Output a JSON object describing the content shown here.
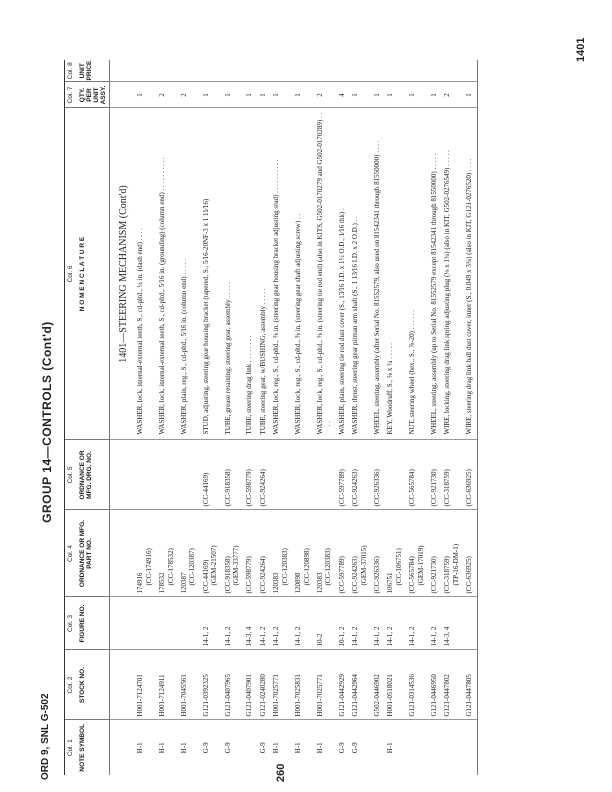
{
  "header": {
    "page_number": "1401",
    "document_id": "ORD 9, SNL G-502",
    "folio": "260",
    "group_title": "GROUP 14—CONTROLS (Cont'd)"
  },
  "columns": [
    {
      "col": "Col. 1",
      "label": "NOTE SYMBOL"
    },
    {
      "col": "Col. 2",
      "label": "STOCK NO."
    },
    {
      "col": "Col. 3",
      "label": "FIGURE NO."
    },
    {
      "col": "Col. 4",
      "label": "ORDNANCE OR MFG. PART NO."
    },
    {
      "col": "Col. 5",
      "label": "ORDNANCE OR MFG. DRG. NO."
    },
    {
      "col": "Col. 6",
      "label": "N O M E N C L A T U R E"
    },
    {
      "col": "Col. 7",
      "label": "QTY. PER UNIT ASSY."
    },
    {
      "col": "Col. 8",
      "label": "UNIT PRICE"
    }
  ],
  "section_title": "1401—STEERING MECHANISM (Cont'd)",
  "rows": [
    {
      "note": "H-1",
      "stock": "H001-7124701",
      "fig": "",
      "part": [
        "174916",
        "(CC-174916)"
      ],
      "drg": "",
      "nom": "WASHER, lock, internal-external teeth, S., cd-pltd., ¼ in. (dash end) . . . .",
      "qty": "1"
    },
    {
      "note": "H-1",
      "stock": "H001-7124911",
      "fig": "",
      "part": [
        "178532",
        "(CC-178532)"
      ],
      "drg": "",
      "nom": "WASHER, lock, internal-external teeth, S., cd-pltd., 5⁄16 in. (grounding) (column end) . . . . . . . . . .",
      "qty": "2"
    },
    {
      "note": "H-1",
      "stock": "H001-7045561",
      "fig": "",
      "part": [
        "120387",
        "(CC-120387)"
      ],
      "drg": "",
      "nom": "WASHER, plain, reg., S., cd-pltd., 5⁄16 in. (column end) . . . . .",
      "qty": "2"
    },
    {
      "note": "G-9",
      "stock": "G121-0392325",
      "fig": "14-1, 2",
      "part": [
        "(CC-44169)",
        "(GEM-21507)"
      ],
      "drg": "(CC-44169)",
      "nom": "STUD, adjusting, steering gear housing bracket (tapered, S., 5⁄16-20NF-3 x 1 11⁄16)",
      "qty": "1"
    },
    {
      "note": "G-9",
      "stock": "G121-0407965",
      "fig": "14-1, 2",
      "part": [
        "(CC-918358)",
        "(GEM-33777)"
      ],
      "drg": "(CC-918358)",
      "nom": "TUBE, grease retaining, steering gear, assembly . . . . .",
      "qty": "1"
    },
    {
      "note": "",
      "stock": "G121-0407901",
      "fig": "14-3, 4",
      "part": [
        "(CC-598779)"
      ],
      "drg": "(CC-598779)",
      "nom": "TUBE, steering drag link . . . . . . . .",
      "qty": "1"
    },
    {
      "note": "G-9",
      "stock": "G121-0240280",
      "fig": "14-1, 2",
      "part": [
        "(CC-924264)"
      ],
      "drg": "(CC-924264)",
      "nom": "TUBE, steering gear, w/BUSHING, assembly . . . . .",
      "qty": "1"
    },
    {
      "note": "H-1",
      "stock": "H001-7025771",
      "fig": "14-1, 2",
      "part": [
        "120383",
        "(CC-120383)"
      ],
      "drg": "",
      "nom": "WASHER, lock, reg., S., cd-pltd., ⅜ in. (steering gear housing bracket adjusting stud) . . . . . . . . . .",
      "qty": "1"
    },
    {
      "note": "H-1",
      "stock": "H001-7025831",
      "fig": "14-1, 2",
      "part": [
        "120898",
        "(CC-120898)"
      ],
      "drg": "",
      "nom": "WASHER, lock, reg., S., cd-pltd., ⅝ in. (steering gear shaft adjusting screw) . .",
      "qty": "1"
    },
    {
      "note": "H-1",
      "stock": "H001-7025771",
      "fig": "10-2",
      "part": [
        "120383",
        "(CC-120383)"
      ],
      "drg": "",
      "nom": "WASHER, lock, reg., S., cd-pltd., ⅜ in. (steering tie rod end) (also in KITS, G502-0170279 and G502-0170289) . . . .",
      "qty": "2"
    },
    {
      "note": "G-9",
      "stock": "G121-0442929",
      "fig": "10-1, 2",
      "part": [
        "(CC-597789)"
      ],
      "drg": "(CC-597789)",
      "nom": "WASHER, plain, steering tie rod dust cover (S., 13⁄16 I.D. x 1½ O.D., 1⁄16 thk) .",
      "qty": "4"
    },
    {
      "note": "G-9",
      "stock": "G121-0442964",
      "fig": "14-1, 2",
      "part": [
        "(CC-924263)",
        "(GEM-37015)"
      ],
      "drg": "(CC-924263)",
      "nom": "WASHER, thrust, steering gear pitman arm shaft (S., 1 13⁄16 I.D. x 2 O.D.) . .",
      "qty": "1"
    },
    {
      "note": "",
      "stock": "G502-0446902",
      "fig": "14-1, 2",
      "part": [
        "(CC-926336)"
      ],
      "drg": "(CC-926336)",
      "nom": "WHEEL, steering, assembly (after Serial No. 81552579, also used on 81542341 through 81550000) . . . .",
      "qty": "1"
    },
    {
      "note": "H-1",
      "stock": "H001-0518021",
      "fig": "14-1, 2",
      "part": [
        "106751",
        "(CC-106751)"
      ],
      "drg": "",
      "nom": "KEY, Woodruff, S., ⅜ x ¼ . . . . .",
      "qty": "1"
    },
    {
      "note": "",
      "stock": "G121-0314536",
      "fig": "14-1, 2",
      "part": [
        "(CC-565784)",
        "(GEM-17019)"
      ],
      "drg": "(CC-565784)",
      "nom": "NUT, steering wheel (hex., S., ⅞-20) . . . . . .",
      "qty": "1"
    },
    {
      "note": "",
      "stock": "G121-0446950",
      "fig": "14-1, 2",
      "part": [
        "(CC-921730)"
      ],
      "drg": "(CC-921730)",
      "nom": "WHEEL, steering, assembly (up to Serial No. 81552579 except 81542341 through 81550000) . . . . .",
      "qty": "1"
    },
    {
      "note": "",
      "stock": "G121-0447802",
      "fig": "14-3, 4",
      "part": [
        "(CC-318759)",
        "(TP-16-DM-1)"
      ],
      "drg": "(CC-318759)",
      "nom": "WIRE, locking, steering drag link spring adjusting plug (⅛ x 1¾) (also in KIT, G502-0276549) . . . . .",
      "qty": "2"
    },
    {
      "note": "",
      "stock": "G121-0447805",
      "fig": "",
      "part": [
        "(CC-636925)"
      ],
      "drg": "(CC-636925)",
      "nom": "WIRE, steering drag link ball dust cover, inner (S., 0.049 x 3¾) (also in KIT, G121-0276520) . . . .",
      "qty": "1"
    }
  ]
}
